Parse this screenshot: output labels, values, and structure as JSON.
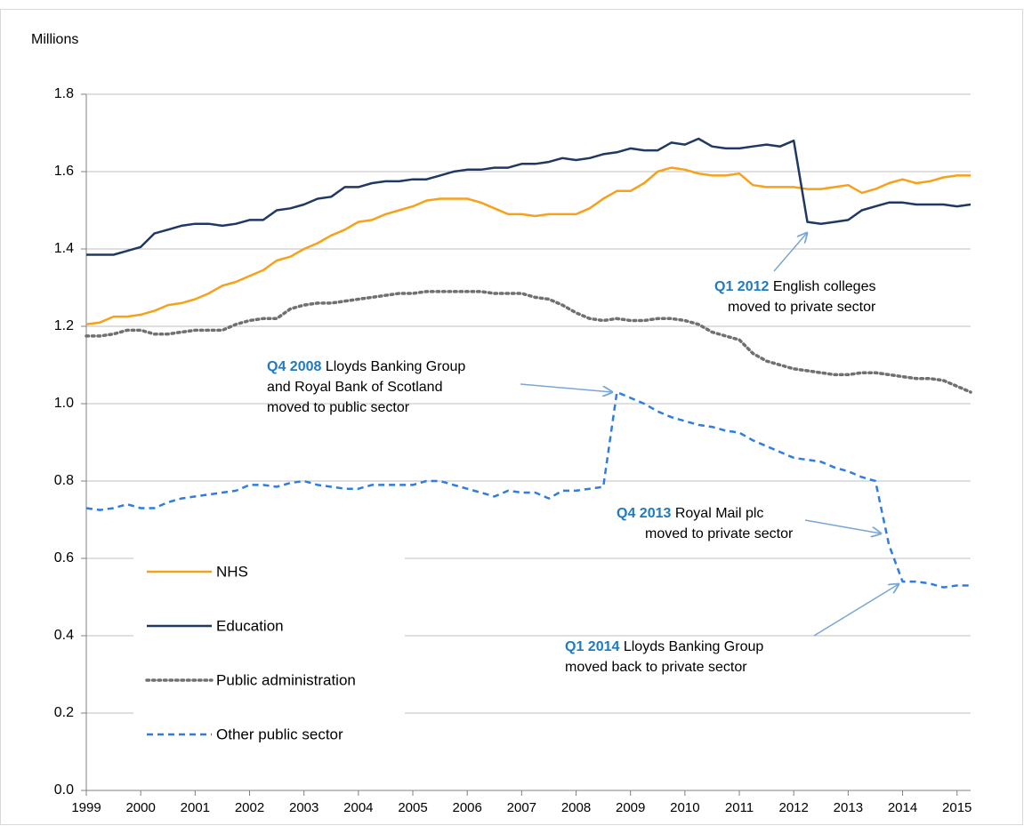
{
  "chart_data": {
    "type": "line",
    "y_label": "Millions",
    "x": [
      1999,
      1999.25,
      1999.5,
      1999.75,
      2000,
      2000.25,
      2000.5,
      2000.75,
      2001,
      2001.25,
      2001.5,
      2001.75,
      2002,
      2002.25,
      2002.5,
      2002.75,
      2003,
      2003.25,
      2003.5,
      2003.75,
      2004,
      2004.25,
      2004.5,
      2004.75,
      2005,
      2005.25,
      2005.5,
      2005.75,
      2006,
      2006.25,
      2006.5,
      2006.75,
      2007,
      2007.25,
      2007.5,
      2007.75,
      2008,
      2008.25,
      2008.5,
      2008.75,
      2009,
      2009.25,
      2009.5,
      2009.75,
      2010,
      2010.25,
      2010.5,
      2010.75,
      2011,
      2011.25,
      2011.5,
      2011.75,
      2012,
      2012.25,
      2012.5,
      2012.75,
      2013,
      2013.25,
      2013.5,
      2013.75,
      2014,
      2014.25,
      2014.5,
      2014.75,
      2015,
      2015.25
    ],
    "xlim": [
      1999,
      2015.25
    ],
    "xticks": [
      1999,
      2000,
      2001,
      2002,
      2003,
      2004,
      2005,
      2006,
      2007,
      2008,
      2009,
      2010,
      2011,
      2012,
      2013,
      2014,
      2015
    ],
    "ylim": [
      0,
      1.8
    ],
    "yticks": [
      {
        "value": 0,
        "label": "0.0"
      },
      0.2,
      0.4,
      0.6,
      0.8,
      {
        "value": 1,
        "label": "1.0"
      },
      1.2,
      1.4,
      1.6,
      1.8
    ],
    "grid": true,
    "legend_position": "lower left",
    "series": [
      {
        "name": "NHS",
        "color": "#f7a11a",
        "style": "solid",
        "values": [
          1.205,
          1.21,
          1.225,
          1.225,
          1.23,
          1.24,
          1.255,
          1.26,
          1.27,
          1.285,
          1.305,
          1.315,
          1.33,
          1.345,
          1.37,
          1.38,
          1.4,
          1.415,
          1.435,
          1.45,
          1.47,
          1.475,
          1.49,
          1.5,
          1.51,
          1.525,
          1.53,
          1.53,
          1.53,
          1.52,
          1.505,
          1.49,
          1.49,
          1.485,
          1.49,
          1.49,
          1.49,
          1.505,
          1.53,
          1.55,
          1.55,
          1.57,
          1.6,
          1.61,
          1.605,
          1.595,
          1.59,
          1.59,
          1.595,
          1.565,
          1.56,
          1.56,
          1.56,
          1.555,
          1.555,
          1.56,
          1.565,
          1.545,
          1.555,
          1.57,
          1.58,
          1.57,
          1.575,
          1.585,
          1.59,
          1.59
        ]
      },
      {
        "name": "Education",
        "color": "#1f3864",
        "style": "solid",
        "values": [
          1.385,
          1.385,
          1.385,
          1.395,
          1.405,
          1.44,
          1.45,
          1.46,
          1.465,
          1.465,
          1.46,
          1.465,
          1.475,
          1.475,
          1.5,
          1.505,
          1.515,
          1.53,
          1.535,
          1.56,
          1.56,
          1.57,
          1.575,
          1.575,
          1.58,
          1.58,
          1.59,
          1.6,
          1.605,
          1.605,
          1.61,
          1.61,
          1.62,
          1.62,
          1.625,
          1.635,
          1.63,
          1.635,
          1.645,
          1.65,
          1.66,
          1.655,
          1.655,
          1.675,
          1.67,
          1.685,
          1.665,
          1.66,
          1.66,
          1.665,
          1.67,
          1.665,
          1.68,
          1.47,
          1.465,
          1.47,
          1.475,
          1.5,
          1.51,
          1.52,
          1.52,
          1.515,
          1.515,
          1.515,
          1.51,
          1.515
        ]
      },
      {
        "name": "Public administration",
        "color": "#707070",
        "style": "dotted",
        "values": [
          1.175,
          1.175,
          1.18,
          1.19,
          1.19,
          1.18,
          1.18,
          1.185,
          1.19,
          1.19,
          1.19,
          1.205,
          1.215,
          1.22,
          1.22,
          1.245,
          1.255,
          1.26,
          1.26,
          1.265,
          1.27,
          1.275,
          1.28,
          1.285,
          1.285,
          1.29,
          1.29,
          1.29,
          1.29,
          1.29,
          1.285,
          1.285,
          1.285,
          1.275,
          1.27,
          1.255,
          1.235,
          1.22,
          1.215,
          1.22,
          1.215,
          1.215,
          1.22,
          1.22,
          1.215,
          1.205,
          1.185,
          1.175,
          1.165,
          1.13,
          1.11,
          1.1,
          1.09,
          1.085,
          1.08,
          1.075,
          1.075,
          1.08,
          1.08,
          1.075,
          1.07,
          1.065,
          1.065,
          1.06,
          1.045,
          1.03
        ]
      },
      {
        "name": "Other public sector",
        "color": "#2f7de1",
        "style": "dashed",
        "values": [
          0.73,
          0.725,
          0.73,
          0.74,
          0.73,
          0.73,
          0.745,
          0.755,
          0.76,
          0.765,
          0.77,
          0.775,
          0.79,
          0.79,
          0.785,
          0.795,
          0.8,
          0.79,
          0.785,
          0.78,
          0.78,
          0.79,
          0.79,
          0.79,
          0.79,
          0.8,
          0.8,
          0.79,
          0.78,
          0.77,
          0.76,
          0.775,
          0.77,
          0.77,
          0.755,
          0.775,
          0.775,
          0.78,
          0.785,
          1.03,
          1.015,
          1.0,
          0.98,
          0.965,
          0.955,
          0.945,
          0.94,
          0.93,
          0.925,
          0.905,
          0.89,
          0.875,
          0.86,
          0.855,
          0.85,
          0.835,
          0.825,
          0.81,
          0.8,
          0.635,
          0.54,
          0.54,
          0.535,
          0.525,
          0.53,
          0.53
        ]
      }
    ],
    "annotations": [
      {
        "label": "Q1 2012",
        "text": [
          "English colleges",
          "moved to private sector"
        ]
      },
      {
        "label": "Q4 2008",
        "text": [
          "Lloyds Banking Group",
          "and Royal Bank of Scotland",
          "moved to public sector"
        ]
      },
      {
        "label": "Q4 2013",
        "text": [
          "Royal Mail plc",
          "moved to private sector"
        ]
      },
      {
        "label": "Q1 2014",
        "text": [
          "Lloyds Banking Group",
          "moved back to private sector"
        ]
      }
    ]
  }
}
